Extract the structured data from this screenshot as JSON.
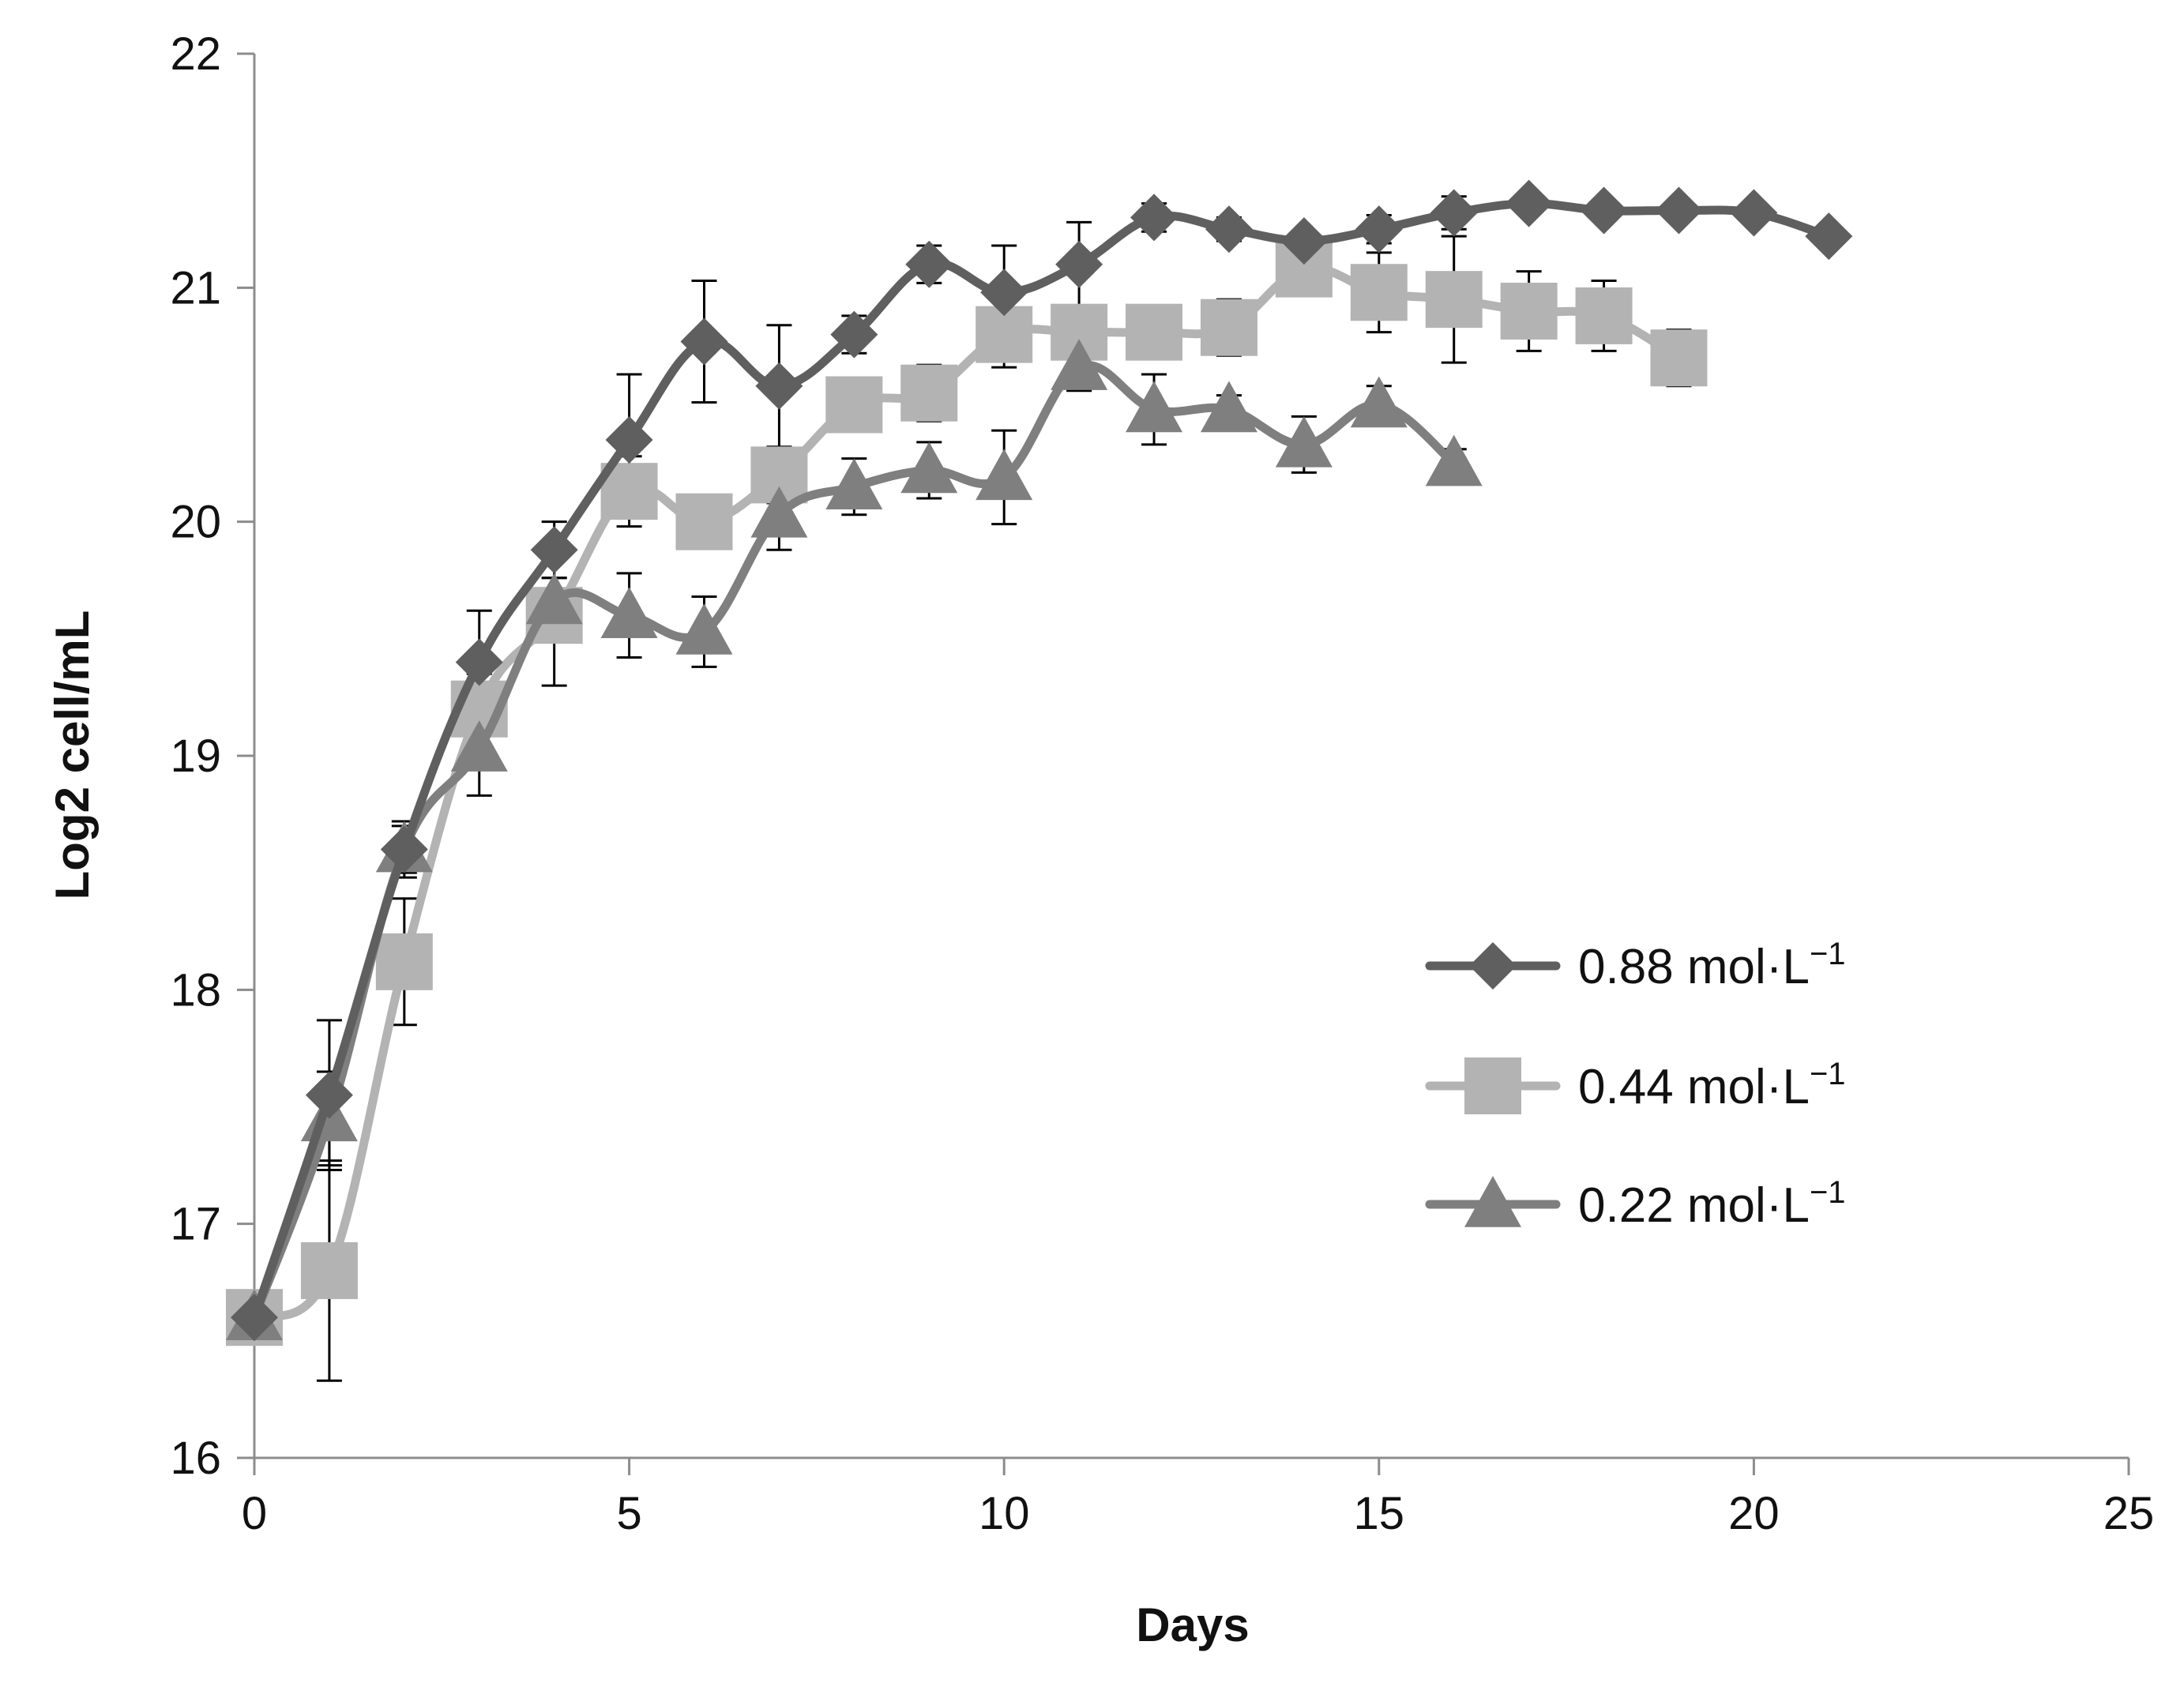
{
  "chart_data": {
    "type": "line",
    "title": "",
    "xlabel": "Days",
    "ylabel": "Log2 cell/mL",
    "xlim": [
      0,
      25
    ],
    "ylim": [
      16,
      22
    ],
    "xticks": [
      0,
      5,
      10,
      15,
      20,
      25
    ],
    "yticks": [
      16,
      17,
      18,
      19,
      20,
      21,
      22
    ],
    "grid": false,
    "legend_position": "right-middle",
    "series": [
      {
        "name": "0.88 mol·L",
        "superscript": "−1",
        "marker": "diamond",
        "color": "#5f5f5f",
        "x": [
          0,
          1,
          2,
          3,
          4,
          5,
          6,
          7,
          8,
          9,
          10,
          11,
          12,
          13,
          14,
          15,
          16,
          17,
          18,
          19,
          20,
          21
        ],
        "y": [
          16.6,
          17.55,
          18.6,
          19.4,
          19.88,
          20.35,
          20.77,
          20.58,
          20.8,
          21.1,
          20.98,
          21.1,
          21.3,
          21.25,
          21.2,
          21.25,
          21.32,
          21.36,
          21.33,
          21.33,
          21.32,
          21.22
        ],
        "err": [
          0,
          0.32,
          0.12,
          0.22,
          0.12,
          0.28,
          0.26,
          0.26,
          0.08,
          0.08,
          0.2,
          0.18,
          0.06,
          0.05,
          0.04,
          0.06,
          0.07,
          0.03,
          0.03,
          0.03,
          0.03,
          0.03
        ]
      },
      {
        "name": "0.44 mol·L",
        "superscript": "−1",
        "marker": "square",
        "color": "#b3b3b3",
        "x": [
          0,
          1,
          2,
          3,
          4,
          5,
          6,
          7,
          8,
          9,
          10,
          11,
          12,
          13,
          14,
          15,
          16,
          17,
          18,
          19
        ],
        "y": [
          16.6,
          16.8,
          18.12,
          19.2,
          19.6,
          20.13,
          20.0,
          20.2,
          20.5,
          20.55,
          20.8,
          20.81,
          20.81,
          20.83,
          21.08,
          20.98,
          20.95,
          20.9,
          20.88,
          20.7
        ],
        "err": [
          0,
          0.47,
          0.27,
          0.15,
          0.3,
          0.15,
          0.05,
          0.12,
          0.08,
          0.12,
          0.14,
          0.1,
          0.06,
          0.12,
          0.06,
          0.17,
          0.27,
          0.17,
          0.15,
          0.12
        ]
      },
      {
        "name": "0.22 mol·L",
        "superscript": "−1",
        "marker": "triangle",
        "color": "#7f7f7f",
        "x": [
          0,
          1,
          2,
          3,
          4,
          5,
          6,
          7,
          8,
          9,
          10,
          11,
          12,
          13,
          14,
          15,
          16
        ],
        "y": [
          16.6,
          17.45,
          18.6,
          19.03,
          19.66,
          19.6,
          19.53,
          20.03,
          20.15,
          20.22,
          20.19,
          20.66,
          20.48,
          20.48,
          20.33,
          20.5,
          20.25
        ],
        "err": [
          0,
          0.2,
          0.1,
          0.2,
          0.1,
          0.18,
          0.15,
          0.15,
          0.12,
          0.12,
          0.2,
          0.1,
          0.15,
          0.06,
          0.12,
          0.08,
          0.06
        ]
      }
    ]
  }
}
